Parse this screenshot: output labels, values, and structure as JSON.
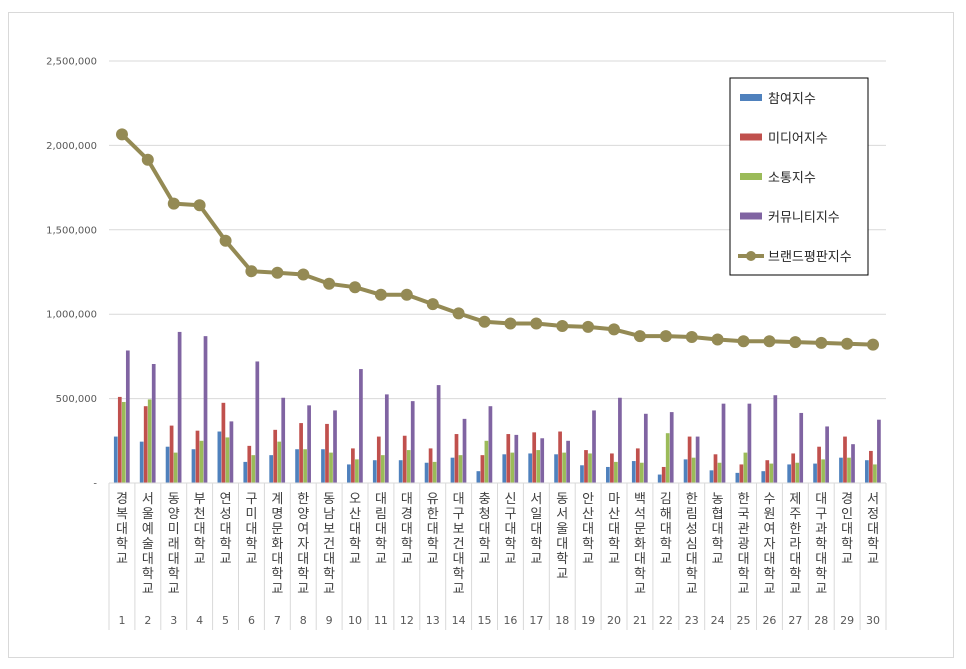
{
  "chart_data": {
    "type": "bar",
    "categories": [
      "경복대학교",
      "서울예술대학교",
      "동양미래대학교",
      "부천대학교",
      "연성대학교",
      "구미대학교",
      "계명문화대학교",
      "한양여자대학교",
      "동남보건대학교",
      "오산대학교",
      "대림대학교",
      "대경대학교",
      "유한대학교",
      "대구보건대학교",
      "충청대학교",
      "신구대학교",
      "서일대학교",
      "동서울대학교",
      "안산대학교",
      "마산대학교",
      "백석문화대학교",
      "김해대학교",
      "한림성심대학교",
      "농협대학교",
      "한국관광대학교",
      "수원여자대학교",
      "제주한라대학교",
      "대구과학대학교",
      "경인대학교",
      "서정대학교"
    ],
    "ranks": [
      "1",
      "2",
      "3",
      "4",
      "5",
      "6",
      "7",
      "8",
      "9",
      "10",
      "11",
      "12",
      "13",
      "14",
      "15",
      "16",
      "17",
      "18",
      "19",
      "20",
      "21",
      "22",
      "23",
      "24",
      "25",
      "26",
      "27",
      "28",
      "29",
      "30"
    ],
    "series": [
      {
        "name": "참여지수",
        "kind": "bar",
        "color": "#4f81bd",
        "values": [
          275000,
          245000,
          215000,
          200000,
          305000,
          125000,
          165000,
          200000,
          200000,
          110000,
          135000,
          135000,
          120000,
          150000,
          70000,
          170000,
          175000,
          170000,
          105000,
          95000,
          130000,
          50000,
          140000,
          75000,
          60000,
          70000,
          110000,
          115000,
          150000,
          135000
        ]
      },
      {
        "name": "미디어지수",
        "kind": "bar",
        "color": "#c0504d",
        "values": [
          510000,
          455000,
          340000,
          310000,
          475000,
          220000,
          315000,
          355000,
          350000,
          205000,
          275000,
          280000,
          205000,
          290000,
          165000,
          290000,
          300000,
          305000,
          195000,
          175000,
          205000,
          95000,
          275000,
          170000,
          110000,
          135000,
          175000,
          215000,
          275000,
          190000
        ]
      },
      {
        "name": "소통지수",
        "kind": "bar",
        "color": "#9bbb59",
        "values": [
          480000,
          495000,
          180000,
          250000,
          270000,
          165000,
          245000,
          200000,
          180000,
          140000,
          165000,
          195000,
          125000,
          165000,
          250000,
          180000,
          195000,
          180000,
          175000,
          125000,
          120000,
          295000,
          150000,
          120000,
          180000,
          115000,
          120000,
          140000,
          150000,
          110000
        ]
      },
      {
        "name": "커뮤니티지수",
        "kind": "bar",
        "color": "#8064a2",
        "values": [
          785000,
          705000,
          895000,
          870000,
          365000,
          720000,
          505000,
          460000,
          430000,
          675000,
          525000,
          485000,
          580000,
          380000,
          455000,
          285000,
          265000,
          250000,
          430000,
          505000,
          410000,
          420000,
          275000,
          470000,
          470000,
          520000,
          415000,
          335000,
          230000,
          375000
        ]
      },
      {
        "name": "브랜드평판지수",
        "kind": "line",
        "color": "#948a54",
        "values": [
          2065000,
          1915000,
          1655000,
          1645000,
          1435000,
          1255000,
          1245000,
          1235000,
          1180000,
          1160000,
          1115000,
          1115000,
          1060000,
          1005000,
          955000,
          945000,
          945000,
          930000,
          925000,
          910000,
          870000,
          870000,
          865000,
          850000,
          840000,
          840000,
          835000,
          830000,
          825000,
          820000
        ]
      }
    ],
    "ylim": [
      0,
      2500000
    ],
    "yticks": [
      "-",
      "500,000",
      "1,000,000",
      "1,500,000",
      "2,000,000",
      "2,500,000"
    ],
    "legend_position": "top-right",
    "grid": true
  }
}
